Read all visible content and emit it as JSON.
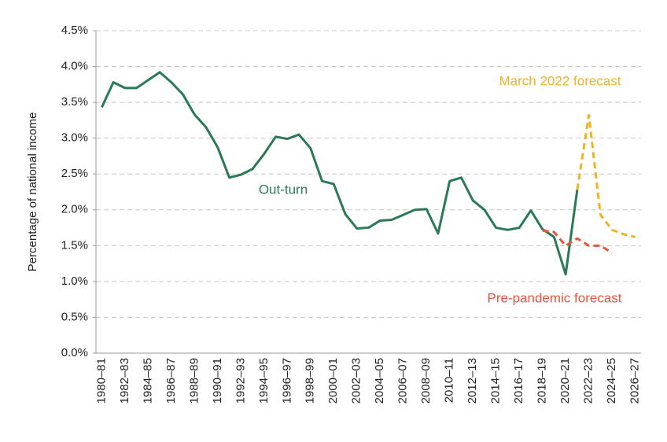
{
  "chart_data": {
    "type": "line",
    "y_label": "Percentage of national income",
    "categories": [
      "1980–81",
      null,
      "1982–83",
      null,
      "1984–85",
      null,
      "1986–87",
      null,
      "1988–89",
      null,
      "1990–91",
      null,
      "1992–93",
      null,
      "1994–95",
      null,
      "1996–97",
      null,
      "1998–99",
      null,
      "2000–01",
      null,
      "2002–03",
      null,
      "2004–05",
      null,
      "2006–07",
      null,
      "2008–09",
      null,
      "2010–11",
      null,
      "2012–13",
      null,
      "2014–15",
      null,
      "2016–17",
      null,
      "2018–19",
      null,
      "2020–21",
      null,
      "2022–23",
      null,
      "2024–25",
      null,
      "2026–27"
    ],
    "series": [
      {
        "name": "Out-turn",
        "color": "#2a7a56",
        "dashed": false,
        "values": [
          3.43,
          3.78,
          3.7,
          3.7,
          3.81,
          3.92,
          3.78,
          3.61,
          3.33,
          3.15,
          2.87,
          2.45,
          2.49,
          2.57,
          2.78,
          3.02,
          2.99,
          3.05,
          2.86,
          2.4,
          2.36,
          1.94,
          1.74,
          1.75,
          1.85,
          1.86,
          1.93,
          2.0,
          2.01,
          1.67,
          2.4,
          2.45,
          2.13,
          2.0,
          1.75,
          1.72,
          1.75,
          1.99,
          1.73,
          1.62,
          1.1,
          2.28,
          null,
          null,
          null,
          null,
          null
        ]
      },
      {
        "name": "March 2022 forecast",
        "color": "#f0b323",
        "dashed": true,
        "values": [
          null,
          null,
          null,
          null,
          null,
          null,
          null,
          null,
          null,
          null,
          null,
          null,
          null,
          null,
          null,
          null,
          null,
          null,
          null,
          null,
          null,
          null,
          null,
          null,
          null,
          null,
          null,
          null,
          null,
          null,
          null,
          null,
          null,
          null,
          null,
          null,
          null,
          null,
          null,
          null,
          null,
          2.28,
          3.32,
          1.93,
          1.72,
          1.66,
          1.62
        ]
      },
      {
        "name": "Pre-pandemic forecast",
        "color": "#e8553b",
        "dashed": true,
        "values": [
          null,
          null,
          null,
          null,
          null,
          null,
          null,
          null,
          null,
          null,
          null,
          null,
          null,
          null,
          null,
          null,
          null,
          null,
          null,
          null,
          null,
          null,
          null,
          null,
          null,
          null,
          null,
          null,
          null,
          null,
          null,
          null,
          null,
          null,
          null,
          null,
          null,
          null,
          1.71,
          1.69,
          1.5,
          1.6,
          1.5,
          1.5,
          1.4,
          null,
          null
        ]
      }
    ],
    "ylim": [
      0,
      4.5
    ],
    "yticks": [
      {
        "value": 0,
        "label": "0.0%"
      },
      {
        "value": 0.5,
        "label": "0.5%"
      },
      {
        "value": 1,
        "label": "1.0%"
      },
      {
        "value": 1.5,
        "label": "1.5%"
      },
      {
        "value": 2,
        "label": "2.0%"
      },
      {
        "value": 2.5,
        "label": "2.5%"
      },
      {
        "value": 3,
        "label": "3.0%"
      },
      {
        "value": 3.5,
        "label": "3.5%"
      },
      {
        "value": 4,
        "label": "4.0%"
      },
      {
        "value": 4.5,
        "label": "4.5%"
      }
    ],
    "grid": true
  }
}
